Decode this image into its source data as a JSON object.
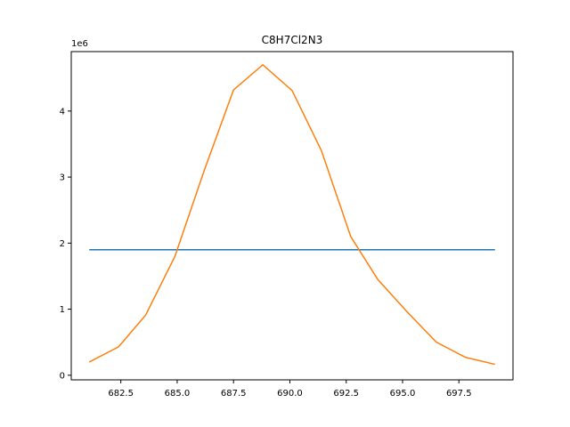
{
  "chart_data": {
    "type": "line",
    "title": "C8H7Cl2N3",
    "xlabel": "",
    "ylabel": "",
    "y_offset_label": "1e6",
    "xlim": [
      80.3,
      699.9
    ],
    "ylim": [
      -70000,
      4900000
    ],
    "x_ticks": [
      682.5,
      685.0,
      687.5,
      690.0,
      692.5,
      695.0,
      697.5
    ],
    "x_tick_labels": [
      "682.5",
      "685.0",
      "687.5",
      "690.0",
      "692.5",
      "695.0",
      "697.5"
    ],
    "y_ticks": [
      0,
      1000000,
      2000000,
      3000000,
      4000000
    ],
    "y_tick_labels": [
      "0",
      "1",
      "2",
      "3",
      "4"
    ],
    "grid": false,
    "series": [
      {
        "color": "#1f77b4",
        "x": [
          681.1,
          699.1
        ],
        "y": [
          1900000,
          1900000
        ]
      },
      {
        "color": "#ff7f0e",
        "x": [
          681.1,
          682.4,
          683.6,
          684.9,
          686.2,
          687.5,
          688.8,
          690.1,
          691.4,
          692.7,
          693.9,
          695.2,
          696.5,
          697.8,
          699.1
        ],
        "y": [
          200000,
          430000,
          910000,
          1800000,
          3100000,
          4320000,
          4700000,
          4310000,
          3400000,
          2100000,
          1450000,
          960000,
          500000,
          270000,
          165000
        ]
      }
    ]
  }
}
